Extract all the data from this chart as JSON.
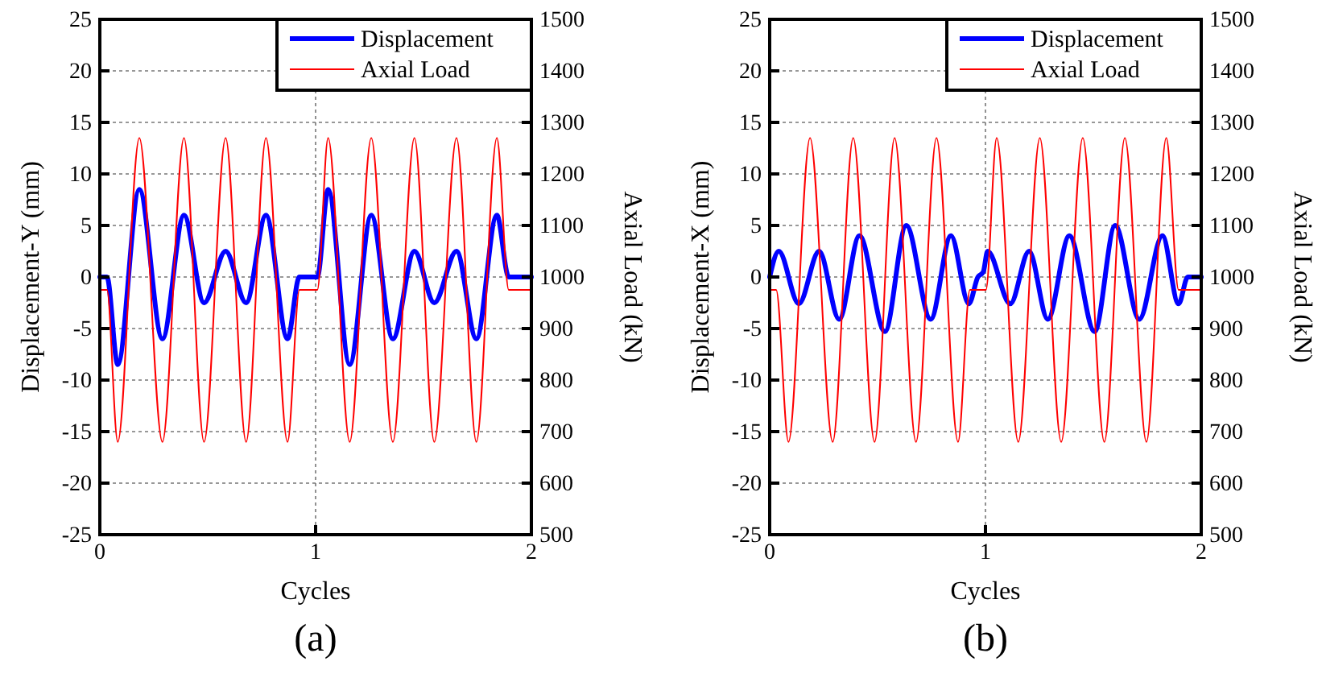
{
  "chart_data": [
    {
      "type": "line",
      "xlabel": "Cycles",
      "ylabel": "Displacement-Y (mm)",
      "y2label": "Axial Load (kN)",
      "xlim": [
        0,
        2
      ],
      "xticks": [
        0,
        1,
        2
      ],
      "ylim": [
        -25,
        25
      ],
      "yticks": [
        -25,
        -20,
        -15,
        -10,
        -5,
        0,
        5,
        10,
        15,
        20,
        25
      ],
      "y2lim": [
        500,
        1500
      ],
      "y2ticks": [
        500,
        600,
        700,
        800,
        900,
        1000,
        1100,
        1200,
        1300,
        1400,
        1500
      ],
      "grid": true,
      "legend": "top right",
      "annotations": [
        "(a)"
      ],
      "series": [
        {
          "name": "Displacement",
          "color": "#0000ff",
          "x": [
            0,
            0.033,
            0.083,
            0.183,
            0.29,
            0.39,
            0.483,
            0.583,
            0.678,
            0.77,
            0.87,
            0.925,
            1.008,
            1.058,
            1.158,
            1.258,
            1.358,
            1.458,
            1.55,
            1.653,
            1.745,
            1.84,
            1.895,
            2.0
          ],
          "values": [
            0,
            0,
            -8.5,
            8.5,
            -6,
            6,
            -2.5,
            2.5,
            -2.5,
            6,
            -6,
            0,
            0,
            8.5,
            -8.5,
            6,
            -6,
            2.5,
            -2.5,
            2.5,
            -6,
            6,
            0,
            0
          ]
        },
        {
          "name": "Axial Load",
          "color": "#ff0000",
          "axis": "y2",
          "x": [
            0,
            0.033,
            0.083,
            0.183,
            0.29,
            0.39,
            0.483,
            0.583,
            0.678,
            0.77,
            0.87,
            0.925,
            1.008,
            1.058,
            1.158,
            1.258,
            1.358,
            1.458,
            1.55,
            1.653,
            1.745,
            1.84,
            1.895,
            2.0
          ],
          "values": [
            975,
            975,
            680,
            1270,
            680,
            1270,
            680,
            1270,
            680,
            1270,
            680,
            975,
            975,
            1270,
            680,
            1270,
            680,
            1270,
            680,
            1270,
            680,
            1270,
            975,
            975
          ]
        }
      ]
    },
    {
      "type": "line",
      "xlabel": "Cycles",
      "ylabel": "Displacement-X (mm)",
      "y2label": "Axial Load (kN)",
      "xlim": [
        0,
        2
      ],
      "xticks": [
        0,
        1,
        2
      ],
      "ylim": [
        -25,
        25
      ],
      "yticks": [
        -25,
        -20,
        -15,
        -10,
        -5,
        0,
        5,
        10,
        15,
        20,
        25
      ],
      "y2lim": [
        500,
        1500
      ],
      "y2ticks": [
        500,
        600,
        700,
        800,
        900,
        1000,
        1100,
        1200,
        1300,
        1400,
        1500
      ],
      "grid": true,
      "legend": "top right",
      "annotations": [
        "(b)"
      ],
      "series": [
        {
          "name": "Displacement",
          "color": "#0000ff",
          "x": [
            0,
            0.042,
            0.135,
            0.229,
            0.322,
            0.416,
            0.534,
            0.633,
            0.746,
            0.84,
            0.923,
            0.965,
            0.99,
            1.01,
            1.115,
            1.202,
            1.289,
            1.389,
            1.506,
            1.601,
            1.713,
            1.82,
            1.895,
            1.938,
            2.0
          ],
          "values": [
            0,
            2.5,
            -2.6,
            2.5,
            -4.1,
            4,
            -5.3,
            5,
            -4.1,
            4,
            -2.6,
            0,
            0.5,
            2.5,
            -2.6,
            2.5,
            -4.1,
            4,
            -5.3,
            5,
            -4.1,
            4,
            -2.6,
            0,
            0
          ]
        },
        {
          "name": "Axial Load",
          "color": "#ff0000",
          "axis": "y2",
          "x": [
            0,
            0.03,
            0.087,
            0.187,
            0.292,
            0.387,
            0.486,
            0.579,
            0.678,
            0.773,
            0.873,
            0.928,
            1.002,
            1.052,
            1.152,
            1.252,
            1.351,
            1.451,
            1.551,
            1.646,
            1.746,
            1.838,
            1.895,
            2.0
          ],
          "values": [
            975,
            975,
            680,
            1270,
            680,
            1270,
            680,
            1270,
            680,
            1270,
            680,
            975,
            975,
            1270,
            680,
            1270,
            680,
            1270,
            680,
            1270,
            680,
            1270,
            975,
            975
          ]
        }
      ]
    }
  ]
}
